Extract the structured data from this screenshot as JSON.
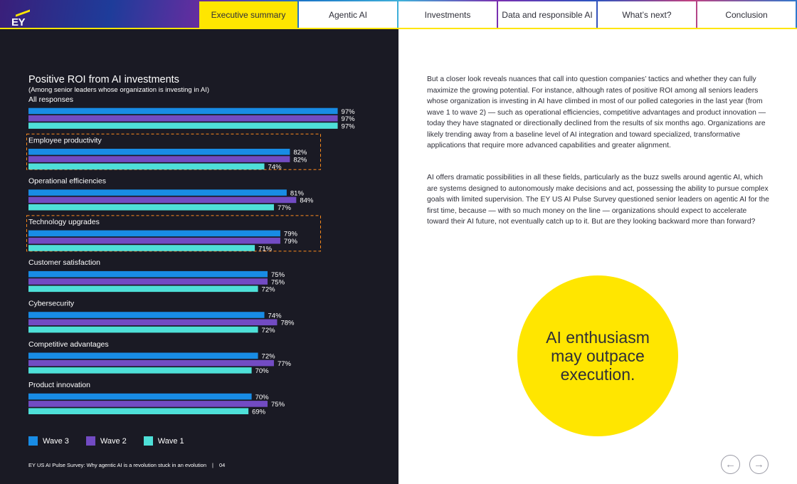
{
  "brand": {
    "logo_text": "EY"
  },
  "nav": {
    "tabs": [
      {
        "label": "Executive summary",
        "active": true
      },
      {
        "label": "Agentic AI",
        "active": false
      },
      {
        "label": "Investments",
        "active": false
      },
      {
        "label": "Data and responsible AI",
        "active": false
      },
      {
        "label": "What’s next?",
        "active": false
      },
      {
        "label": "Conclusion",
        "active": false
      }
    ]
  },
  "chart_data": {
    "type": "bar",
    "orientation": "horizontal",
    "title": "Positive ROI from AI investments",
    "subtitle": "(Among senior leaders whose organization is investing in AI)",
    "categories": [
      "All responses",
      "Employee productivity",
      "Operational efficiencies",
      "Technology upgrades",
      "Customer satisfaction",
      "Cybersecurity",
      "Competitive advantages",
      "Product innovation"
    ],
    "highlighted": [
      "Employee productivity",
      "Technology upgrades"
    ],
    "series": [
      {
        "name": "Wave 3",
        "color": "#188ce5",
        "values": [
          97,
          82,
          81,
          79,
          75,
          74,
          72,
          70
        ]
      },
      {
        "name": "Wave 2",
        "color": "#724bc3",
        "values": [
          97,
          82,
          84,
          79,
          75,
          78,
          77,
          75
        ]
      },
      {
        "name": "Wave 1",
        "color": "#4ee0d8",
        "values": [
          97,
          74,
          77,
          71,
          72,
          72,
          70,
          69
        ]
      }
    ],
    "value_suffix": "%",
    "xlim": [
      0,
      100
    ],
    "legend_position": "bottom-left"
  },
  "legend": [
    {
      "label": "Wave 3",
      "color": "#188ce5"
    },
    {
      "label": "Wave 2",
      "color": "#724bc3"
    },
    {
      "label": "Wave 1",
      "color": "#4ee0d8"
    }
  ],
  "footer": {
    "title": "EY US AI Pulse Survey: Why agentic AI is a revolution stuck in an evolution",
    "separator": "|",
    "page": "04"
  },
  "body": {
    "para1": "But a closer look reveals nuances that call into question companies’ tactics and whether they can fully maximize the growing potential. For instance, although rates of positive ROI among all seniors leaders whose organization is investing in AI have climbed in most of our polled categories in the last year (from wave 1 to wave 2) — such as operational efficiencies, competitive advantages and product innovation — today they have stagnated or directionally declined from the results of six months ago. Organizations are likely trending away from a baseline level of AI integration and toward specialized, transformative applications that require more advanced capabilities and greater alignment.",
    "para2": "AI offers dramatic possibilities in all these fields, particularly as the buzz swells around agentic AI, which are systems designed to autonomously make decisions and act, possessing the ability to pursue complex goals with limited supervision. The EY US AI Pulse Survey questioned senior leaders on agentic AI for the first time, because — with so much money on the line — organizations should expect to accelerate toward their AI future, not eventually catch up to it. But are they looking backward more than forward?"
  },
  "callout": {
    "text": "AI enthusiasm may outpace execution.",
    "color": "#ffe600"
  },
  "pager": {
    "prev_icon": "arrow-left-icon",
    "next_icon": "arrow-right-icon"
  }
}
